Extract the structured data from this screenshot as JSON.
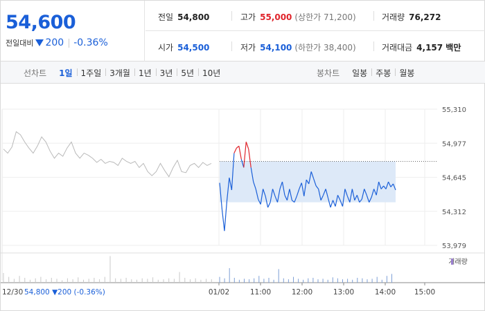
{
  "header": {
    "price": "54,600",
    "change_label": "전일대비",
    "change_amount": "200",
    "change_pct": "-0.36%"
  },
  "stats": {
    "prev_close_label": "전일",
    "prev_close": "54,800",
    "high_label": "고가",
    "high": "55,000",
    "upper_limit": "(상한가 71,200)",
    "volume_label": "거래량",
    "volume": "76,272",
    "open_label": "시가",
    "open": "54,500",
    "low_label": "저가",
    "low": "54,100",
    "lower_limit": "(하한가 38,400)",
    "amount_label": "거래대금",
    "amount": "4,157 백만"
  },
  "period_tabs": {
    "title": "선차트",
    "items": [
      "1일",
      "1주일",
      "3개월",
      "1년",
      "3년",
      "5년",
      "10년"
    ],
    "active": "1일"
  },
  "candle_tabs": {
    "title": "봉차트",
    "items": [
      "일봉",
      "주봉",
      "월봉"
    ]
  },
  "colors": {
    "up": "#e0242b",
    "down": "#1a5fd8",
    "prev_day": "#b9b9b9",
    "fill": "#dde9f8"
  },
  "chart_data": {
    "type": "line",
    "y_ticks": [
      "55,310",
      "54,977",
      "54,645",
      "54,312",
      "53,979"
    ],
    "ylim": [
      53979,
      55310
    ],
    "x_ticks": [
      "01/02",
      "11:00",
      "12:00",
      "13:00",
      "14:00",
      "15:00"
    ],
    "prev_close_ref": 54800,
    "volume_label": "거래량",
    "footer_label": "12/30",
    "footer_text": "54,800 ▼200 (-0.36%)",
    "series": [
      {
        "values": [
          54920,
          54880,
          54940,
          55090,
          55060,
          54990,
          54930,
          54880,
          54950,
          55040,
          54990,
          54900,
          54830,
          54880,
          54850,
          54930,
          54990,
          54880,
          54830,
          54880,
          54860,
          54830,
          54790,
          54820,
          54780,
          54800,
          54790,
          54760,
          54830,
          54800,
          54780,
          54800,
          54740,
          54780,
          54700,
          54660,
          54700,
          54780,
          54710,
          54650,
          54740,
          54810,
          54700,
          54690,
          54760,
          54780,
          54740,
          54790,
          54760,
          54780
        ]
      },
      {
        "values": [
          54590,
          54330,
          54120,
          54410,
          54640,
          54520,
          54880,
          54930,
          54950,
          54820,
          54740,
          54990,
          54920,
          54740,
          54600,
          54530,
          54430,
          54380,
          54530,
          54460,
          54350,
          54400,
          54530,
          54460,
          54400,
          54530,
          54600,
          54470,
          54420,
          54530,
          54420,
          54400,
          54460,
          54530,
          54590,
          54460,
          54620,
          54580,
          54700,
          54630,
          54560,
          54530,
          54420,
          54470,
          54530,
          54440,
          54350,
          54420,
          54360,
          54470,
          54420,
          54360,
          54530,
          54460,
          54400,
          54530,
          54420,
          54470,
          54400,
          54430,
          54530,
          54470,
          54400,
          54450,
          54530,
          54470,
          54600,
          54530,
          54560,
          54530,
          54600,
          54550,
          54580,
          54520
        ]
      }
    ],
    "volume_values": [
      20,
      12,
      8,
      14,
      10,
      6,
      9,
      12,
      7,
      10,
      8,
      5,
      9,
      7,
      11,
      6,
      8,
      10,
      7,
      12,
      55,
      9,
      8,
      10,
      7,
      6,
      9,
      8,
      11,
      6,
      7,
      9,
      8,
      22,
      10,
      7,
      9,
      6,
      8,
      7,
      12,
      9,
      30,
      10,
      6,
      8,
      7,
      9,
      14,
      8,
      10,
      6,
      28,
      9,
      7,
      12,
      8,
      6,
      9,
      10,
      7,
      8,
      6,
      11,
      9,
      7,
      8,
      6,
      10,
      9,
      7,
      8,
      12,
      6,
      14,
      18
    ]
  }
}
